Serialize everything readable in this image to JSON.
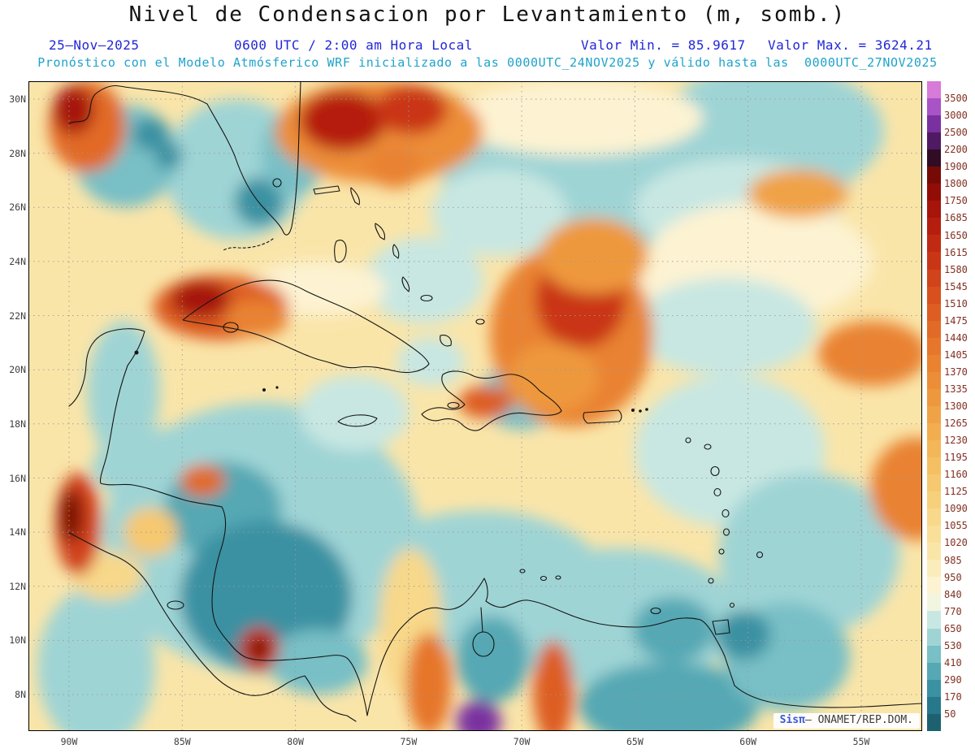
{
  "header": {
    "title": "Nivel de Condensacion por Levantamiento (m, somb.)",
    "date": "25–Nov–2025",
    "time": "0600 UTC / 2:00 am Hora Local",
    "valor_min": "Valor Min. = 85.9617",
    "valor_max": "Valor Max. = 3624.21",
    "model_info": "Pronóstico con el Modelo Atmósferico WRF inicializado a las 0000UTC_24NOV2025 y válido hasta las  0000UTC_27NOV2025"
  },
  "axes": {
    "lat_labels": [
      "30N",
      "28N",
      "26N",
      "24N",
      "22N",
      "20N",
      "18N",
      "16N",
      "14N",
      "12N",
      "10N",
      "8N"
    ],
    "lon_labels": [
      "90W",
      "85W",
      "80W",
      "75W",
      "70W",
      "65W",
      "60W",
      "55W"
    ]
  },
  "watermark": {
    "brand": "Sisπ",
    "text": "– ONAMET/REP.DOM."
  },
  "chart_data": {
    "type": "filled_contour_map",
    "variable": "Nivel de Condensacion por Levantamiento",
    "units": "m",
    "value_min": 85.9617,
    "value_max": 3624.21,
    "valid_time": "25-Nov-2025 0600 UTC / 2:00 am Hora Local",
    "model_init": "0000UTC_24NOV2025",
    "model_valid_until": "0000UTC_27NOV2025",
    "levels": [
      50,
      170,
      290,
      410,
      530,
      650,
      770,
      840,
      950,
      985,
      1020,
      1055,
      1090,
      1125,
      1160,
      1195,
      1230,
      1265,
      1300,
      1335,
      1370,
      1405,
      1440,
      1475,
      1510,
      1545,
      1580,
      1615,
      1650,
      1685,
      1750,
      1800,
      1900,
      2200,
      2500,
      3000,
      3500
    ],
    "colors": [
      "#1d6170",
      "#27788a",
      "#3a91a2",
      "#55a8b4",
      "#78bfc6",
      "#9fd4d5",
      "#c8e7e2",
      "#f2f5e0",
      "#fdf3d2",
      "#fbecbc",
      "#fae5a9",
      "#f9df99",
      "#f8d88a",
      "#f7d07c",
      "#f6c86f",
      "#f5c063",
      "#f3b658",
      "#f2ad4e",
      "#f0a246",
      "#ee983e",
      "#ec8d37",
      "#e98231",
      "#e6762c",
      "#e26a27",
      "#dd5d22",
      "#d7501e",
      "#d1431a",
      "#c93616",
      "#c02a12",
      "#b51e0e",
      "#a6140a",
      "#930d07",
      "#760b05",
      "#300d24",
      "#4f1a63",
      "#7a31a0",
      "#a853c6",
      "#d77ad8"
    ],
    "base_value": 1000,
    "field_regions": [
      {
        "lat": 27.0,
        "lon": 64.5,
        "rx": 9.0,
        "ry": 3.2,
        "v": 600
      },
      {
        "lat": 28.8,
        "lon": 59.0,
        "rx": 5.0,
        "ry": 2.5,
        "v": 550
      },
      {
        "lat": 26.0,
        "lon": 60.5,
        "rx": 4.5,
        "ry": 1.8,
        "v": 700
      },
      {
        "lat": 24.0,
        "lon": 59.5,
        "rx": 5.0,
        "ry": 2.2,
        "v": 900
      },
      {
        "lat": 29.3,
        "lon": 67.5,
        "rx": 5.5,
        "ry": 1.4,
        "v": 900
      },
      {
        "lat": 22.5,
        "lon": 61.5,
        "rx": 4.0,
        "ry": 1.8,
        "v": 900
      },
      {
        "lat": 27.4,
        "lon": 82.6,
        "rx": 3.2,
        "ry": 2.6,
        "v": 550
      },
      {
        "lat": 26.2,
        "lon": 81.6,
        "rx": 1.1,
        "ry": 0.9,
        "v": 200
      },
      {
        "lat": 28.0,
        "lon": 80.1,
        "rx": 1.4,
        "ry": 1.6,
        "v": 500
      },
      {
        "lat": 27.9,
        "lon": 87.5,
        "rx": 2.3,
        "ry": 1.9,
        "v": 500
      },
      {
        "lat": 28.7,
        "lon": 86.4,
        "rx": 0.8,
        "ry": 0.6,
        "v": 200
      },
      {
        "lat": 27.9,
        "lon": 85.6,
        "rx": 0.6,
        "ry": 0.5,
        "v": 250
      },
      {
        "lat": 23.3,
        "lon": 74.3,
        "rx": 2.6,
        "ry": 1.6,
        "v": 650
      },
      {
        "lat": 25.8,
        "lon": 71.0,
        "rx": 3.0,
        "ry": 1.6,
        "v": 750
      },
      {
        "lat": 21.6,
        "lon": 61.0,
        "rx": 4.0,
        "ry": 1.8,
        "v": 700
      },
      {
        "lat": 17.0,
        "lon": 60.8,
        "rx": 4.2,
        "ry": 2.8,
        "v": 650
      },
      {
        "lat": 13.2,
        "lon": 57.3,
        "rx": 4.0,
        "ry": 3.0,
        "v": 550
      },
      {
        "lat": 19.2,
        "lon": 87.6,
        "rx": 1.6,
        "ry": 2.6,
        "v": 550
      },
      {
        "lat": 16.4,
        "lon": 85.8,
        "rx": 3.2,
        "ry": 1.4,
        "v": 550
      },
      {
        "lat": 13.8,
        "lon": 81.5,
        "rx": 7.0,
        "ry": 5.0,
        "v": 550
      },
      {
        "lat": 14.8,
        "lon": 83.2,
        "rx": 2.6,
        "ry": 1.8,
        "v": 300
      },
      {
        "lat": 11.6,
        "lon": 81.3,
        "rx": 3.8,
        "ry": 2.8,
        "v": 260
      },
      {
        "lat": 9.2,
        "lon": 79.0,
        "rx": 2.2,
        "ry": 1.2,
        "v": 500
      },
      {
        "lat": 12.2,
        "lon": 71.8,
        "rx": 5.5,
        "ry": 2.6,
        "v": 620
      },
      {
        "lat": 10.8,
        "lon": 65.8,
        "rx": 5.5,
        "ry": 2.6,
        "v": 580
      },
      {
        "lat": 10.4,
        "lon": 63.3,
        "rx": 1.8,
        "ry": 1.2,
        "v": 300
      },
      {
        "lat": 9.3,
        "lon": 71.3,
        "rx": 1.6,
        "ry": 1.6,
        "v": 380
      },
      {
        "lat": 7.6,
        "lon": 63.5,
        "rx": 4.0,
        "ry": 1.6,
        "v": 380
      },
      {
        "lat": 9.4,
        "lon": 58.3,
        "rx": 2.8,
        "ry": 2.0,
        "v": 450
      },
      {
        "lat": 10.2,
        "lon": 60.2,
        "rx": 1.2,
        "ry": 0.9,
        "v": 200
      },
      {
        "lat": 19.0,
        "lon": 70.0,
        "rx": 1.9,
        "ry": 1.2,
        "v": 420
      },
      {
        "lat": 18.4,
        "lon": 77.4,
        "rx": 2.4,
        "ry": 1.4,
        "v": 650
      },
      {
        "lat": 9.0,
        "lon": 88.8,
        "rx": 2.6,
        "ry": 3.0,
        "v": 620
      },
      {
        "lat": 20.3,
        "lon": 74.0,
        "rx": 1.5,
        "ry": 0.9,
        "v": 650
      },
      {
        "lat": 23.0,
        "lon": 79.0,
        "rx": 3.0,
        "ry": 1.0,
        "v": 880
      },
      {
        "lat": 10.6,
        "lon": 74.9,
        "rx": 1.4,
        "ry": 2.8,
        "v": 1080
      },
      {
        "lat": 14.0,
        "lon": 86.4,
        "rx": 1.2,
        "ry": 0.9,
        "v": 1150
      },
      {
        "lat": 12.4,
        "lon": 88.3,
        "rx": 1.6,
        "ry": 0.9,
        "v": 1060
      },
      {
        "lat": 29.0,
        "lon": 89.2,
        "rx": 1.7,
        "ry": 1.7,
        "v": 1450
      },
      {
        "lat": 29.6,
        "lon": 89.8,
        "rx": 0.9,
        "ry": 0.9,
        "v": 1700
      },
      {
        "lat": 28.8,
        "lon": 76.3,
        "rx": 4.6,
        "ry": 1.9,
        "v": 1350
      },
      {
        "lat": 29.2,
        "lon": 77.9,
        "rx": 1.9,
        "ry": 1.1,
        "v": 1650
      },
      {
        "lat": 29.6,
        "lon": 74.9,
        "rx": 1.6,
        "ry": 0.9,
        "v": 1600
      },
      {
        "lat": 27.5,
        "lon": 75.6,
        "rx": 1.2,
        "ry": 0.8,
        "v": 1400
      },
      {
        "lat": 26.5,
        "lon": 57.8,
        "rx": 2.2,
        "ry": 0.9,
        "v": 1280
      },
      {
        "lat": 22.3,
        "lon": 83.3,
        "rx": 3.0,
        "ry": 1.2,
        "v": 1480
      },
      {
        "lat": 22.6,
        "lon": 84.2,
        "rx": 1.3,
        "ry": 0.7,
        "v": 1700
      },
      {
        "lat": 21.9,
        "lon": 81.7,
        "rx": 1.4,
        "ry": 0.7,
        "v": 1380
      },
      {
        "lat": 21.3,
        "lon": 67.8,
        "rx": 3.6,
        "ry": 3.4,
        "v": 1380
      },
      {
        "lat": 22.6,
        "lon": 67.4,
        "rx": 2.0,
        "ry": 1.8,
        "v": 1600
      },
      {
        "lat": 19.7,
        "lon": 68.6,
        "rx": 2.0,
        "ry": 1.3,
        "v": 1320
      },
      {
        "lat": 24.2,
        "lon": 66.8,
        "rx": 2.4,
        "ry": 1.4,
        "v": 1300
      },
      {
        "lat": 20.6,
        "lon": 54.5,
        "rx": 2.4,
        "ry": 1.2,
        "v": 1380
      },
      {
        "lat": 15.6,
        "lon": 52.6,
        "rx": 2.0,
        "ry": 1.9,
        "v": 1400
      },
      {
        "lat": 18.8,
        "lon": 71.6,
        "rx": 1.2,
        "ry": 0.6,
        "v": 1500
      },
      {
        "lat": 15.9,
        "lon": 84.1,
        "rx": 1.0,
        "ry": 0.6,
        "v": 1450
      },
      {
        "lat": 14.3,
        "lon": 89.6,
        "rx": 1.0,
        "ry": 1.9,
        "v": 1550
      },
      {
        "lat": 14.6,
        "lon": 89.9,
        "rx": 0.5,
        "ry": 1.0,
        "v": 1850
      },
      {
        "lat": 9.7,
        "lon": 81.6,
        "rx": 0.9,
        "ry": 0.8,
        "v": 1600
      },
      {
        "lat": 9.7,
        "lon": 81.6,
        "rx": 0.45,
        "ry": 0.4,
        "v": 1880
      },
      {
        "lat": 8.4,
        "lon": 74.1,
        "rx": 1.0,
        "ry": 1.9,
        "v": 1420
      },
      {
        "lat": 8.1,
        "lon": 68.6,
        "rx": 0.9,
        "ry": 1.9,
        "v": 1500
      },
      {
        "lat": 7.0,
        "lon": 71.9,
        "rx": 1.0,
        "ry": 0.8,
        "v": 2600
      }
    ]
  }
}
